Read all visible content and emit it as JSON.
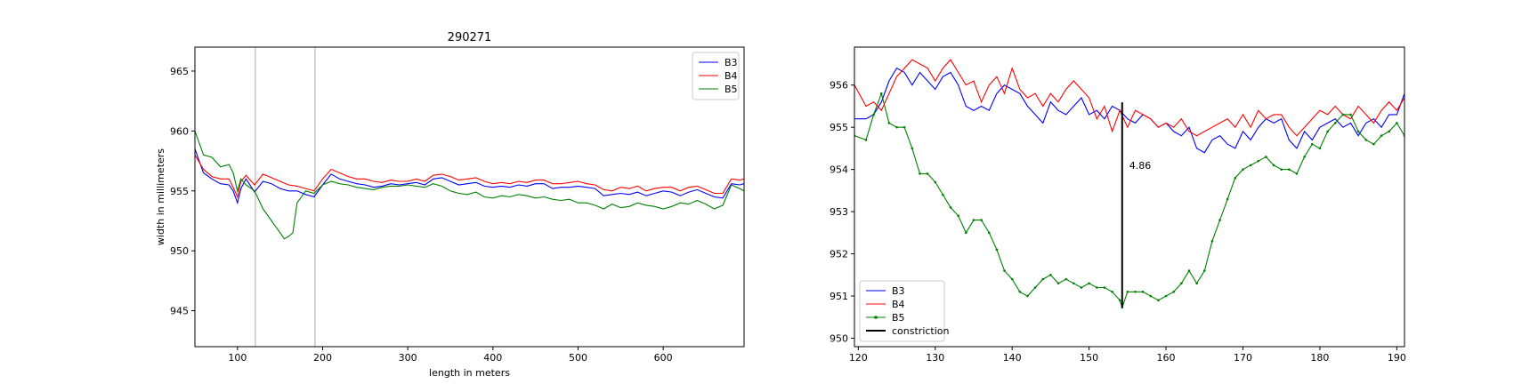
{
  "chart_data": [
    {
      "type": "line",
      "title": "290271",
      "xlabel": "length in meters",
      "ylabel": "width in millimeters",
      "xlim": [
        50,
        695
      ],
      "ylim": [
        942,
        967
      ],
      "xticks": [
        100,
        200,
        300,
        400,
        500,
        600
      ],
      "yticks": [
        945,
        950,
        955,
        960,
        965
      ],
      "grid": false,
      "legend": "top-right",
      "vlines": [
        121,
        191
      ],
      "vline_color": "#aaaaaa",
      "series": [
        {
          "name": "B3",
          "color": "#0000ff",
          "x": [
            50,
            60,
            70,
            80,
            90,
            95,
            100,
            104,
            110,
            120,
            130,
            140,
            150,
            160,
            170,
            180,
            190,
            200,
            210,
            220,
            230,
            240,
            250,
            260,
            270,
            280,
            290,
            300,
            310,
            320,
            330,
            340,
            350,
            360,
            370,
            380,
            390,
            400,
            410,
            420,
            430,
            440,
            450,
            460,
            470,
            480,
            490,
            500,
            510,
            520,
            530,
            540,
            550,
            560,
            570,
            580,
            590,
            600,
            610,
            620,
            630,
            640,
            650,
            660,
            670,
            680,
            690,
            695
          ],
          "values": [
            958.5,
            956.5,
            956.0,
            955.6,
            955.5,
            955.0,
            954.0,
            955.2,
            956.0,
            954.9,
            955.8,
            955.6,
            955.2,
            955.0,
            955.0,
            954.7,
            954.5,
            955.5,
            956.4,
            956.0,
            955.8,
            955.6,
            955.5,
            955.3,
            955.4,
            955.6,
            955.5,
            955.6,
            955.7,
            955.5,
            956.0,
            956.1,
            955.8,
            955.5,
            955.6,
            955.7,
            955.4,
            955.3,
            955.4,
            955.3,
            955.5,
            955.4,
            955.6,
            955.6,
            955.2,
            955.3,
            955.3,
            955.4,
            955.3,
            955.2,
            954.6,
            954.7,
            954.8,
            954.7,
            954.9,
            954.6,
            954.8,
            955.0,
            954.9,
            954.6,
            954.9,
            955.1,
            954.8,
            954.5,
            954.4,
            955.6,
            955.5,
            955.6
          ]
        },
        {
          "name": "B4",
          "color": "#ff0000",
          "x": [
            50,
            60,
            70,
            80,
            90,
            95,
            100,
            104,
            110,
            120,
            130,
            140,
            150,
            160,
            170,
            180,
            190,
            200,
            210,
            220,
            230,
            240,
            250,
            260,
            270,
            280,
            290,
            300,
            310,
            320,
            330,
            340,
            350,
            360,
            370,
            380,
            390,
            400,
            410,
            420,
            430,
            440,
            450,
            460,
            470,
            480,
            490,
            500,
            510,
            520,
            530,
            540,
            550,
            560,
            570,
            580,
            590,
            600,
            610,
            620,
            630,
            640,
            650,
            660,
            670,
            680,
            690,
            695
          ],
          "values": [
            958.0,
            956.8,
            956.2,
            956.0,
            956.0,
            955.3,
            954.5,
            955.8,
            956.3,
            955.5,
            956.4,
            956.1,
            955.8,
            955.5,
            955.4,
            955.2,
            955.0,
            956.0,
            956.8,
            956.5,
            956.2,
            956.0,
            956.0,
            955.8,
            955.7,
            955.9,
            955.8,
            955.8,
            956.0,
            955.8,
            956.3,
            956.4,
            956.2,
            955.9,
            956.0,
            956.1,
            955.8,
            955.6,
            955.7,
            955.6,
            955.8,
            955.7,
            955.9,
            955.9,
            955.6,
            955.6,
            955.7,
            955.8,
            955.6,
            955.5,
            955.1,
            955.0,
            955.3,
            955.2,
            955.4,
            955.0,
            955.2,
            955.3,
            955.3,
            955.0,
            955.3,
            955.4,
            955.1,
            954.8,
            954.8,
            956.0,
            955.9,
            956.0
          ]
        },
        {
          "name": "B5",
          "color": "#008000",
          "x": [
            50,
            60,
            70,
            80,
            90,
            95,
            100,
            104,
            110,
            120,
            130,
            140,
            150,
            155,
            160,
            165,
            170,
            180,
            190,
            200,
            210,
            220,
            230,
            240,
            250,
            260,
            270,
            280,
            290,
            300,
            310,
            320,
            330,
            340,
            350,
            360,
            370,
            380,
            390,
            400,
            410,
            420,
            430,
            440,
            450,
            460,
            470,
            480,
            490,
            500,
            510,
            520,
            530,
            540,
            550,
            560,
            570,
            580,
            590,
            600,
            610,
            620,
            630,
            640,
            650,
            660,
            670,
            680,
            690,
            695
          ],
          "values": [
            960.0,
            958.0,
            957.8,
            957.0,
            957.2,
            956.5,
            955.0,
            956.0,
            955.5,
            955.0,
            953.5,
            952.5,
            951.5,
            951.0,
            951.2,
            951.5,
            954.0,
            955.0,
            954.8,
            955.5,
            955.8,
            955.6,
            955.5,
            955.3,
            955.2,
            955.1,
            955.3,
            955.4,
            955.4,
            955.5,
            955.4,
            955.3,
            955.6,
            955.4,
            955.0,
            954.8,
            954.7,
            954.9,
            954.5,
            954.4,
            954.6,
            954.5,
            954.7,
            954.6,
            954.4,
            954.5,
            954.3,
            954.2,
            954.3,
            954.0,
            954.0,
            953.8,
            953.5,
            953.9,
            953.6,
            953.7,
            954.0,
            953.8,
            953.7,
            953.5,
            953.7,
            954.0,
            953.9,
            954.2,
            953.9,
            953.5,
            953.8,
            955.5,
            955.2,
            955.0
          ]
        }
      ]
    },
    {
      "type": "line",
      "title": "",
      "xlabel": "",
      "ylabel": "",
      "xlim": [
        119.5,
        191
      ],
      "ylim": [
        949.8,
        956.9
      ],
      "xticks": [
        120,
        130,
        140,
        150,
        160,
        170,
        180,
        190
      ],
      "yticks": [
        950,
        951,
        952,
        953,
        954,
        955,
        956
      ],
      "grid": false,
      "legend": "bottom-left",
      "constriction": {
        "name": "constriction",
        "x": 154.3,
        "y_low": 950.73,
        "y_high": 955.59,
        "label": "4.86"
      },
      "series": [
        {
          "name": "B3",
          "color": "#0000ff",
          "x": [
            119.5,
            121,
            122,
            123,
            124,
            125,
            126,
            127,
            128,
            129,
            130,
            131,
            132,
            133,
            134,
            135,
            136,
            137,
            138,
            139,
            140,
            141,
            142,
            143,
            144,
            145,
            146,
            147,
            148,
            149,
            150,
            151,
            152,
            153,
            154,
            155,
            156,
            157,
            158,
            159,
            160,
            161,
            162,
            163,
            164,
            165,
            166,
            167,
            168,
            169,
            170,
            171,
            172,
            173,
            174,
            175,
            176,
            177,
            178,
            179,
            180,
            181,
            182,
            183,
            184,
            185,
            186,
            187,
            188,
            189,
            190,
            191
          ],
          "values": [
            955.2,
            955.2,
            955.3,
            955.6,
            956.1,
            956.4,
            956.3,
            956.0,
            956.3,
            956.1,
            955.9,
            956.2,
            956.3,
            956.0,
            955.5,
            955.4,
            955.5,
            955.4,
            955.8,
            956.0,
            955.9,
            955.8,
            955.5,
            955.3,
            955.1,
            955.6,
            955.4,
            955.3,
            955.5,
            955.7,
            955.3,
            955.4,
            955.2,
            955.5,
            955.4,
            955.2,
            955.1,
            955.3,
            955.2,
            955.0,
            955.1,
            954.9,
            954.8,
            955.0,
            954.5,
            954.4,
            954.7,
            954.8,
            954.6,
            954.5,
            954.9,
            954.7,
            955.0,
            955.2,
            955.1,
            955.2,
            954.7,
            954.5,
            954.9,
            954.7,
            955.0,
            955.1,
            955.2,
            955.0,
            955.1,
            954.8,
            955.1,
            955.2,
            955.0,
            955.3,
            955.3,
            955.8
          ]
        },
        {
          "name": "B4",
          "color": "#ff0000",
          "x": [
            119.5,
            121,
            122,
            123,
            124,
            125,
            126,
            127,
            128,
            129,
            130,
            131,
            132,
            133,
            134,
            135,
            136,
            137,
            138,
            139,
            140,
            141,
            142,
            143,
            144,
            145,
            146,
            147,
            148,
            149,
            150,
            151,
            152,
            153,
            154,
            155,
            156,
            157,
            158,
            159,
            160,
            161,
            162,
            163,
            164,
            165,
            166,
            167,
            168,
            169,
            170,
            171,
            172,
            173,
            174,
            175,
            176,
            177,
            178,
            179,
            180,
            181,
            182,
            183,
            184,
            185,
            186,
            187,
            188,
            189,
            190,
            191
          ],
          "values": [
            956.0,
            955.5,
            955.6,
            955.4,
            955.8,
            956.2,
            956.4,
            956.6,
            956.5,
            956.4,
            956.1,
            956.4,
            956.6,
            956.3,
            956.0,
            956.1,
            955.6,
            956.0,
            956.2,
            955.8,
            956.4,
            955.9,
            955.7,
            955.8,
            955.5,
            955.8,
            955.6,
            955.9,
            956.1,
            955.9,
            955.7,
            955.2,
            955.5,
            954.9,
            955.4,
            955.0,
            955.4,
            955.3,
            955.2,
            955.0,
            955.1,
            955.0,
            955.2,
            954.9,
            954.8,
            954.9,
            955.0,
            955.1,
            955.2,
            955.0,
            955.3,
            955.0,
            955.4,
            955.2,
            955.3,
            955.3,
            955.0,
            954.8,
            955.0,
            955.2,
            955.4,
            955.3,
            955.5,
            955.3,
            955.2,
            955.5,
            955.3,
            955.1,
            955.4,
            955.6,
            955.4,
            955.7
          ]
        },
        {
          "name": "B5",
          "color": "#008000",
          "x": [
            119.5,
            121,
            122,
            123,
            124,
            125,
            126,
            127,
            128,
            129,
            130,
            131,
            132,
            133,
            134,
            135,
            136,
            137,
            138,
            139,
            140,
            141,
            142,
            143,
            144,
            145,
            146,
            147,
            148,
            149,
            150,
            151,
            152,
            153,
            154,
            154.3,
            155,
            156,
            157,
            158,
            159,
            160,
            161,
            162,
            163,
            164,
            165,
            166,
            167,
            168,
            169,
            170,
            171,
            172,
            173,
            174,
            175,
            176,
            177,
            178,
            179,
            180,
            181,
            182,
            183,
            184,
            185,
            186,
            187,
            188,
            189,
            190,
            191
          ],
          "values": [
            954.8,
            954.7,
            955.3,
            955.8,
            955.1,
            955.0,
            955.0,
            954.5,
            953.9,
            953.9,
            953.7,
            953.4,
            953.1,
            952.9,
            952.5,
            952.8,
            952.8,
            952.5,
            952.1,
            951.6,
            951.4,
            951.1,
            951.0,
            951.2,
            951.4,
            951.5,
            951.3,
            951.4,
            951.3,
            951.2,
            951.3,
            951.2,
            951.2,
            951.1,
            950.9,
            950.73,
            951.1,
            951.1,
            951.1,
            951.0,
            950.9,
            951.0,
            951.1,
            951.3,
            951.6,
            951.3,
            951.6,
            952.3,
            952.8,
            953.3,
            953.8,
            954.0,
            954.1,
            954.2,
            954.3,
            954.1,
            954.0,
            954.0,
            953.9,
            954.3,
            954.6,
            954.5,
            954.9,
            955.1,
            955.3,
            955.3,
            954.9,
            954.7,
            954.6,
            954.8,
            954.9,
            955.1,
            954.8
          ]
        }
      ]
    }
  ]
}
